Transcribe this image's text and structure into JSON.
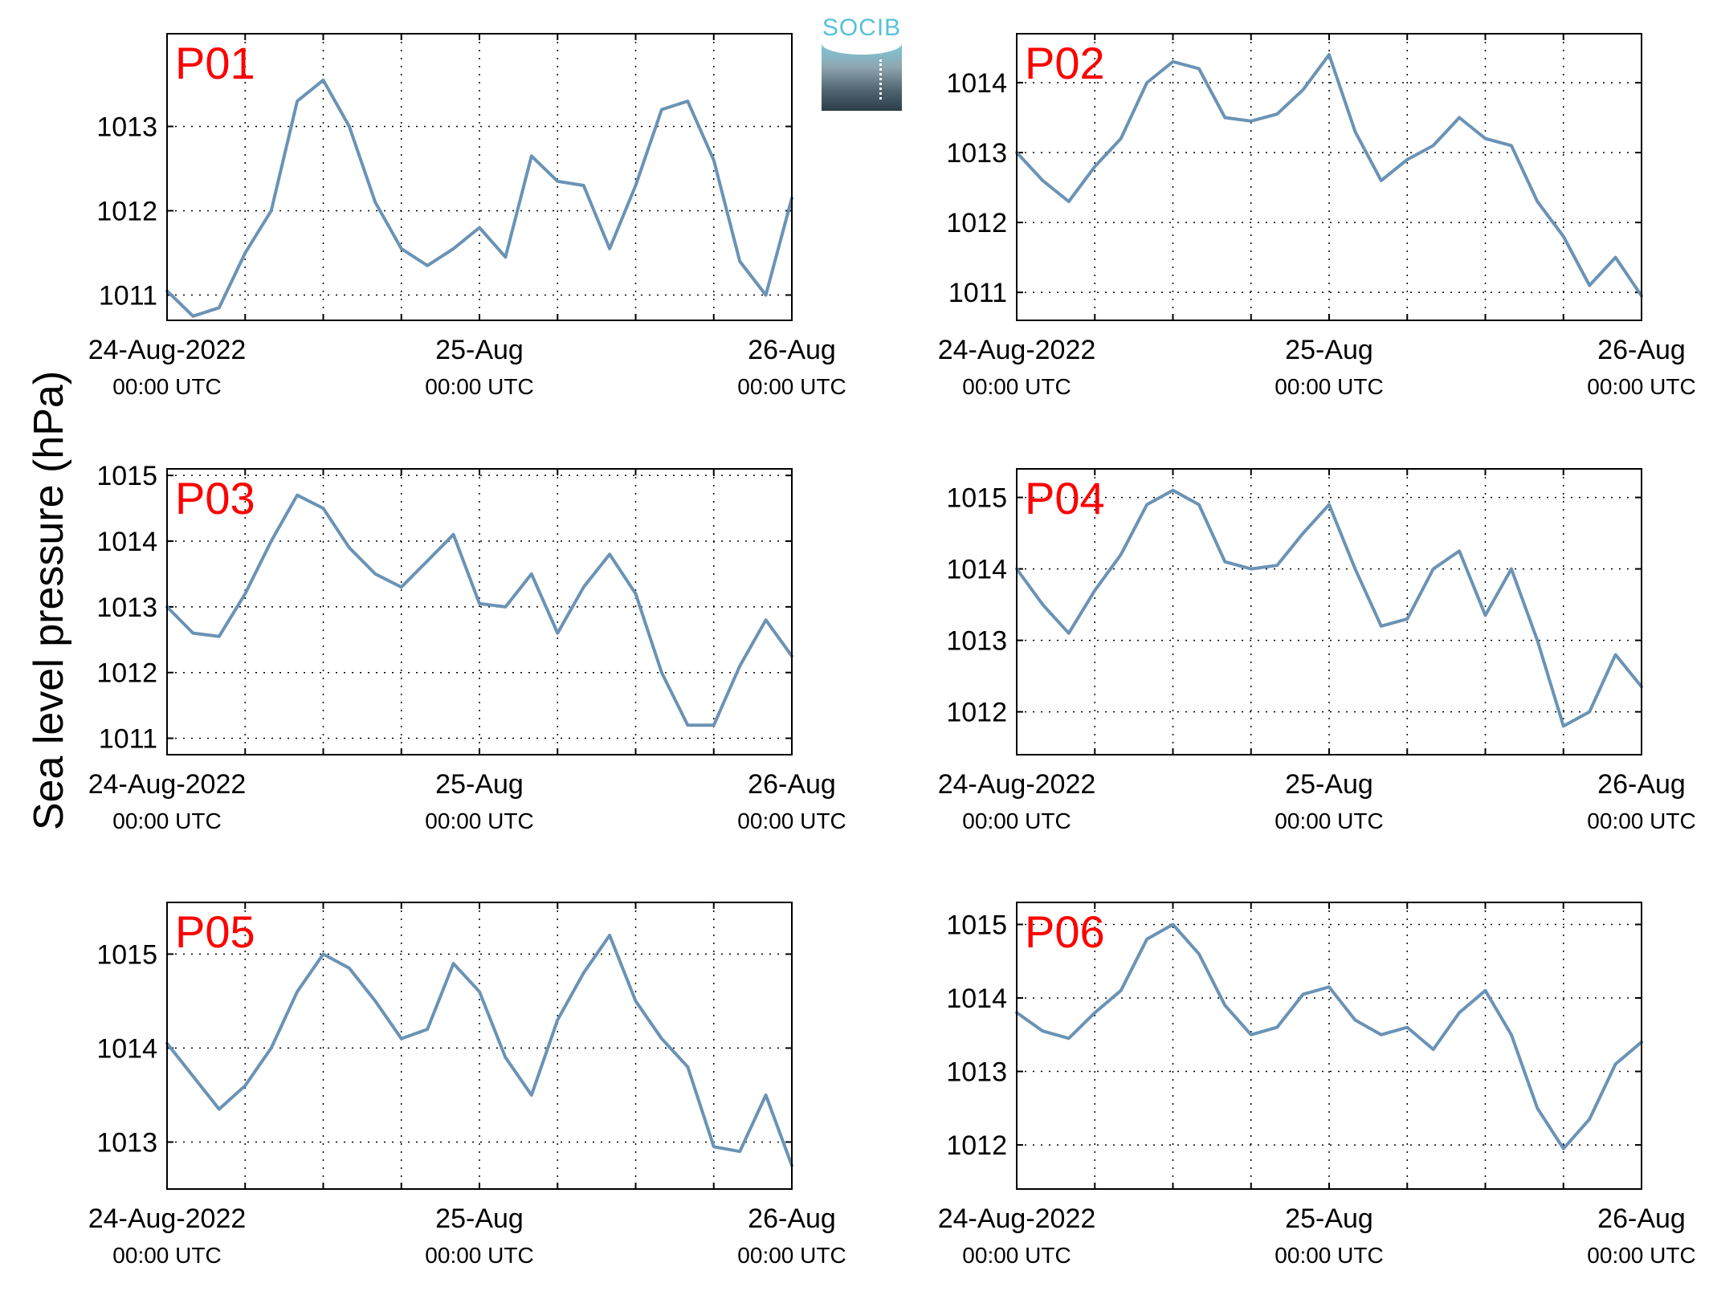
{
  "ylabel": "Sea level pressure (hPa)",
  "logo": {
    "text": "SOCIB",
    "color": "#58c0d8"
  },
  "colors": {
    "line": "#6a93b5",
    "panel_label": "#ff0000",
    "grid": "#000000"
  },
  "x_ticks": [
    {
      "main": "24-Aug-2022",
      "sub": "00:00 UTC"
    },
    {
      "main": "25-Aug",
      "sub": "00:00 UTC"
    },
    {
      "main": "26-Aug",
      "sub": "00:00 UTC"
    }
  ],
  "chart_data": [
    {
      "type": "line",
      "label": "P01",
      "x_range": [
        "2022-08-24T00:00Z",
        "2022-08-26T00:00Z"
      ],
      "ylim": [
        1010.7,
        1014.1
      ],
      "yticks": [
        1011,
        1012,
        1013
      ],
      "grid": "dotted",
      "x_hours": [
        0,
        2,
        4,
        6,
        8,
        10,
        12,
        14,
        16,
        18,
        20,
        22,
        24,
        26,
        28,
        30,
        32,
        34,
        36,
        38,
        40,
        42,
        44,
        46,
        48
      ],
      "series": [
        {
          "values": [
            1011.05,
            1010.75,
            1010.85,
            1011.5,
            1012.0,
            1013.3,
            1013.55,
            1013.0,
            1012.1,
            1011.55,
            1011.35,
            1011.55,
            1011.8,
            1011.45,
            1012.65,
            1012.35,
            1012.3,
            1011.55,
            1012.3,
            1013.2,
            1013.3,
            1012.6,
            1011.4,
            1011.0,
            1012.15
          ]
        }
      ]
    },
    {
      "type": "line",
      "label": "P02",
      "x_range": [
        "2022-08-24T00:00Z",
        "2022-08-26T00:00Z"
      ],
      "ylim": [
        1010.6,
        1014.7
      ],
      "yticks": [
        1011,
        1012,
        1013,
        1014
      ],
      "grid": "dotted",
      "x_hours": [
        0,
        2,
        4,
        6,
        8,
        10,
        12,
        14,
        16,
        18,
        20,
        22,
        24,
        26,
        28,
        30,
        32,
        34,
        36,
        38,
        40,
        42,
        44,
        46,
        48
      ],
      "series": [
        {
          "values": [
            1013.0,
            1012.6,
            1012.3,
            1012.8,
            1013.2,
            1014.0,
            1014.3,
            1014.2,
            1013.5,
            1013.45,
            1013.55,
            1013.9,
            1014.4,
            1013.3,
            1012.6,
            1012.9,
            1013.1,
            1013.5,
            1013.2,
            1013.1,
            1012.3,
            1011.8,
            1011.1,
            1011.5,
            1010.95
          ]
        }
      ]
    },
    {
      "type": "line",
      "label": "P03",
      "x_range": [
        "2022-08-24T00:00Z",
        "2022-08-26T00:00Z"
      ],
      "ylim": [
        1010.75,
        1015.1
      ],
      "yticks": [
        1011,
        1012,
        1013,
        1014,
        1015
      ],
      "grid": "dotted",
      "x_hours": [
        0,
        2,
        4,
        6,
        8,
        10,
        12,
        14,
        16,
        18,
        20,
        22,
        24,
        26,
        28,
        30,
        32,
        34,
        36,
        38,
        40,
        42,
        44,
        46,
        48
      ],
      "series": [
        {
          "values": [
            1013.0,
            1012.6,
            1012.55,
            1013.2,
            1014.0,
            1014.7,
            1014.5,
            1013.9,
            1013.5,
            1013.3,
            1013.7,
            1014.1,
            1013.05,
            1013.0,
            1013.5,
            1012.6,
            1013.3,
            1013.8,
            1013.2,
            1012.0,
            1011.2,
            1011.2,
            1012.1,
            1012.8,
            1012.25
          ]
        }
      ]
    },
    {
      "type": "line",
      "label": "P04",
      "x_range": [
        "2022-08-24T00:00Z",
        "2022-08-26T00:00Z"
      ],
      "ylim": [
        1011.4,
        1015.4
      ],
      "yticks": [
        1012,
        1013,
        1014,
        1015
      ],
      "grid": "dotted",
      "x_hours": [
        0,
        2,
        4,
        6,
        8,
        10,
        12,
        14,
        16,
        18,
        20,
        22,
        24,
        26,
        28,
        30,
        32,
        34,
        36,
        38,
        40,
        42,
        44,
        46,
        48
      ],
      "series": [
        {
          "values": [
            1014.0,
            1013.5,
            1013.1,
            1013.7,
            1014.2,
            1014.9,
            1015.1,
            1014.9,
            1014.1,
            1014.0,
            1014.05,
            1014.5,
            1014.9,
            1014.0,
            1013.2,
            1013.3,
            1014.0,
            1014.25,
            1013.35,
            1014.0,
            1013.0,
            1011.8,
            1012.0,
            1012.8,
            1012.35
          ]
        }
      ]
    },
    {
      "type": "line",
      "label": "P05",
      "x_range": [
        "2022-08-24T00:00Z",
        "2022-08-26T00:00Z"
      ],
      "ylim": [
        1012.5,
        1015.55
      ],
      "yticks": [
        1013,
        1014,
        1015
      ],
      "grid": "dotted",
      "x_hours": [
        0,
        2,
        4,
        6,
        8,
        10,
        12,
        14,
        16,
        18,
        20,
        22,
        24,
        26,
        28,
        30,
        32,
        34,
        36,
        38,
        40,
        42,
        44,
        46,
        48
      ],
      "series": [
        {
          "values": [
            1014.05,
            1013.7,
            1013.35,
            1013.6,
            1014.0,
            1014.6,
            1015.0,
            1014.85,
            1014.5,
            1014.1,
            1014.2,
            1014.9,
            1014.6,
            1013.9,
            1013.5,
            1014.3,
            1014.8,
            1015.2,
            1014.5,
            1014.1,
            1013.8,
            1012.95,
            1012.9,
            1013.5,
            1012.75
          ]
        }
      ]
    },
    {
      "type": "line",
      "label": "P06",
      "x_range": [
        "2022-08-24T00:00Z",
        "2022-08-26T00:00Z"
      ],
      "ylim": [
        1011.4,
        1015.3
      ],
      "yticks": [
        1012,
        1013,
        1014,
        1015
      ],
      "grid": "dotted",
      "x_hours": [
        0,
        2,
        4,
        6,
        8,
        10,
        12,
        14,
        16,
        18,
        20,
        22,
        24,
        26,
        28,
        30,
        32,
        34,
        36,
        38,
        40,
        42,
        44,
        46,
        48
      ],
      "series": [
        {
          "values": [
            1013.8,
            1013.55,
            1013.45,
            1013.8,
            1014.1,
            1014.8,
            1015.0,
            1014.6,
            1013.9,
            1013.5,
            1013.6,
            1014.05,
            1014.15,
            1013.7,
            1013.5,
            1013.6,
            1013.3,
            1013.8,
            1014.1,
            1013.5,
            1012.5,
            1011.95,
            1012.35,
            1013.1,
            1013.4
          ]
        }
      ]
    }
  ]
}
